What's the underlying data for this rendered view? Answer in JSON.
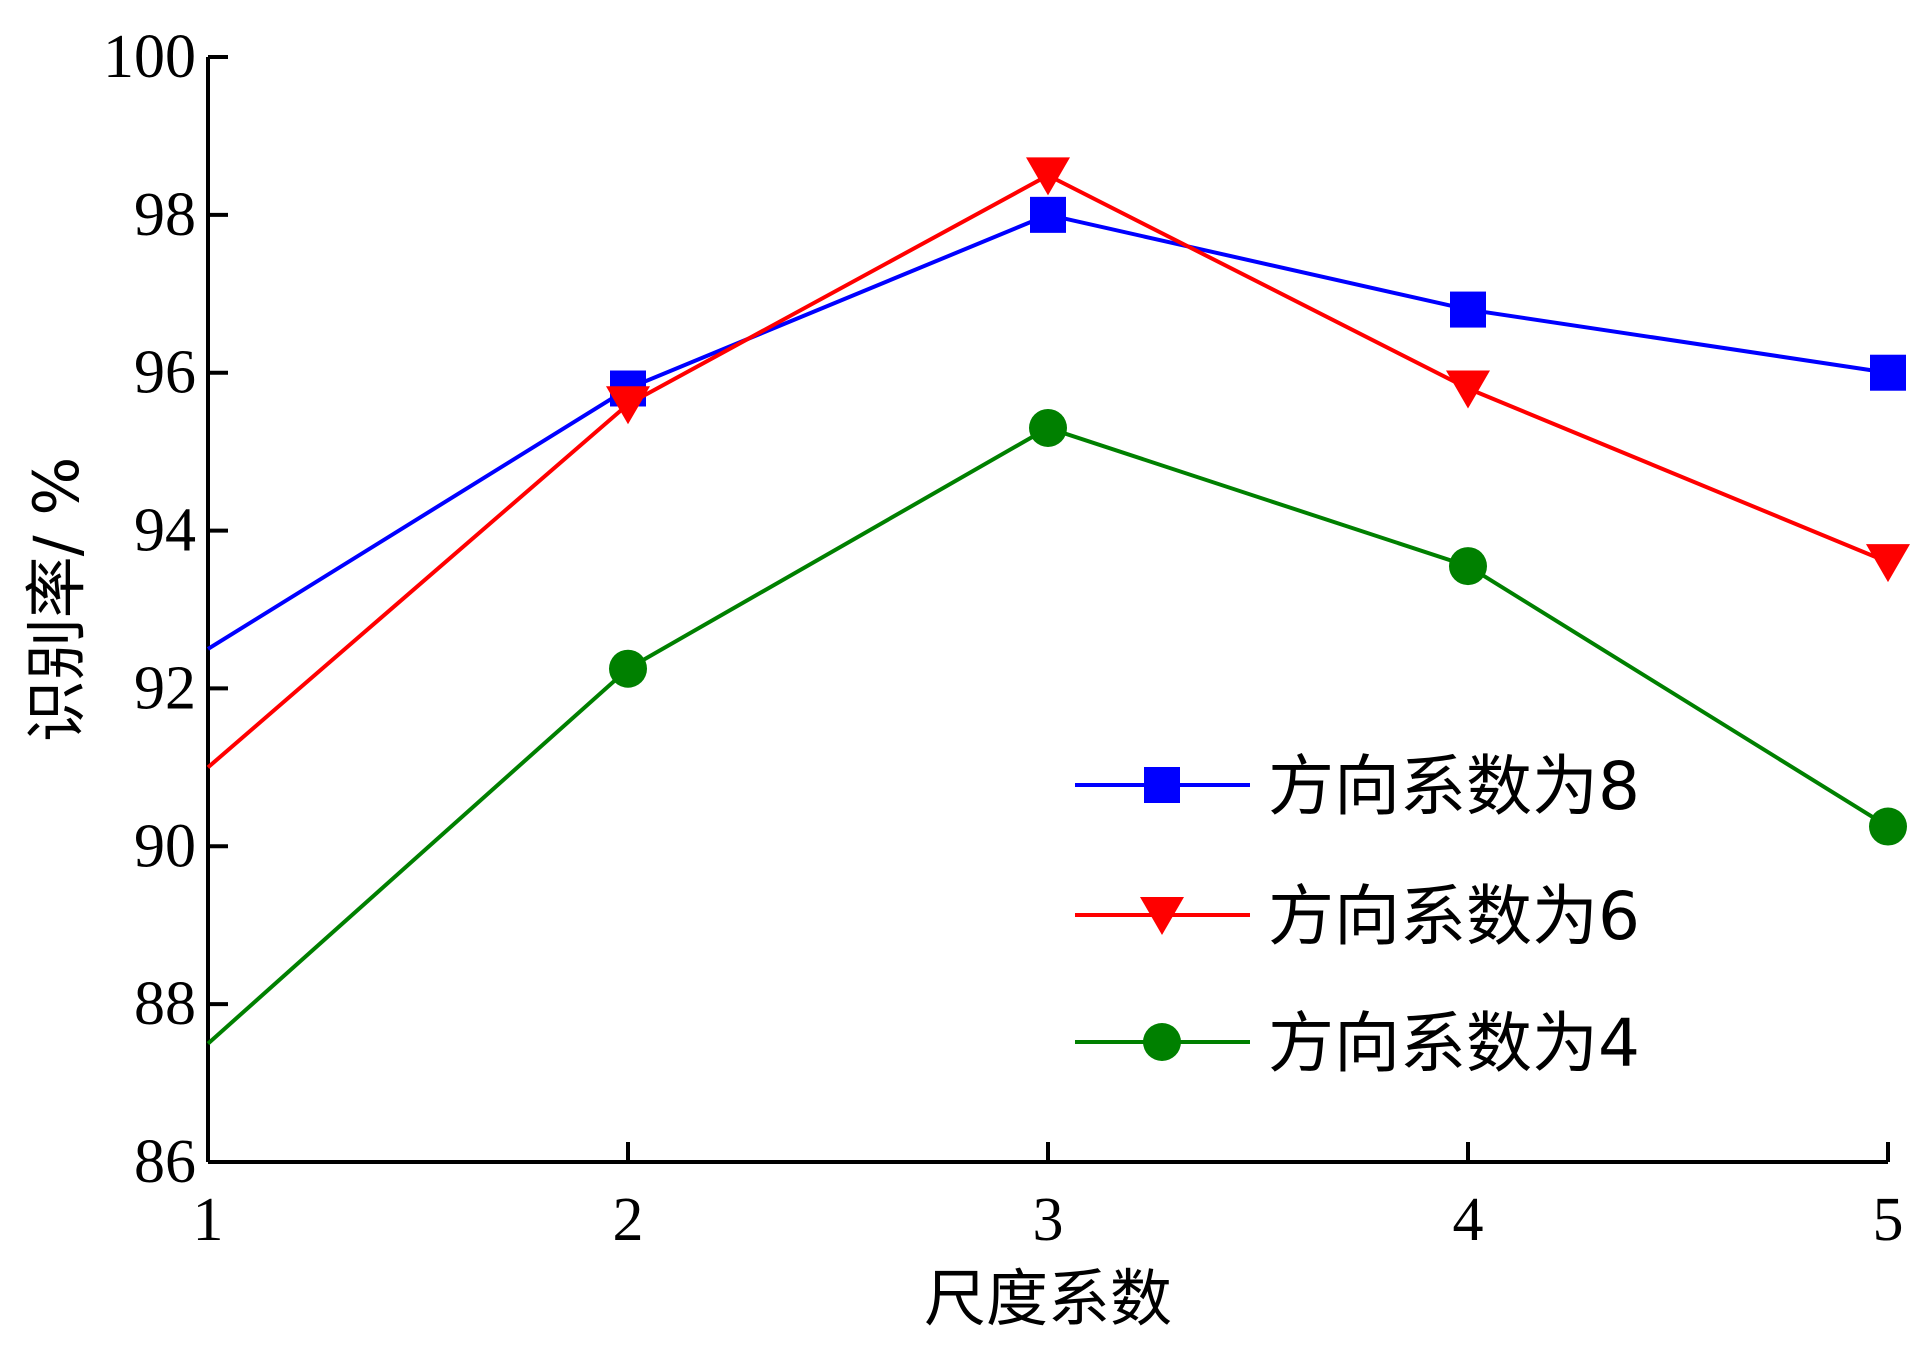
{
  "chart_data": {
    "type": "line",
    "title": "",
    "xlabel": "尺度系数",
    "ylabel": "识别率/ %",
    "x": [
      1,
      2,
      3,
      4,
      5
    ],
    "xticks": [
      "1",
      "2",
      "3",
      "4",
      "5"
    ],
    "xlim": [
      1,
      5
    ],
    "ylim": [
      86,
      100
    ],
    "yticks": [
      "86",
      "88",
      "90",
      "92",
      "94",
      "96",
      "98",
      "100"
    ],
    "grid": false,
    "legend_position": "bottom-right",
    "series": [
      {
        "name": "方向系数为8",
        "color": "#0000ff",
        "marker": "square",
        "values": [
          92.5,
          95.8,
          98.0,
          96.8,
          96.0
        ]
      },
      {
        "name": "方向系数为6",
        "color": "#ff0000",
        "marker": "triangle-down",
        "values": [
          91.0,
          95.6,
          98.5,
          95.8,
          93.6
        ]
      },
      {
        "name": "方向系数为4",
        "color": "#008000",
        "marker": "circle",
        "values": [
          87.5,
          92.25,
          95.3,
          93.55,
          90.25
        ]
      }
    ]
  }
}
